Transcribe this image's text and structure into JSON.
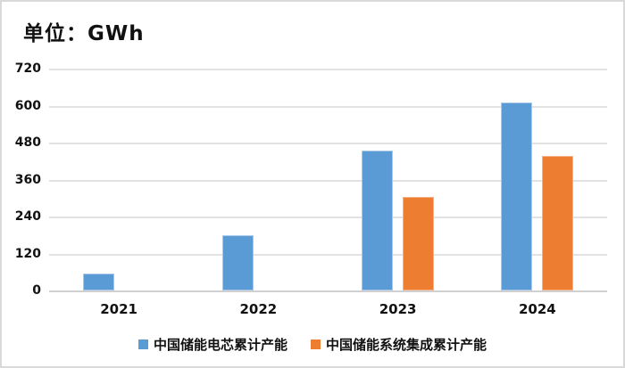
{
  "title": "单位：GWh",
  "chart_data": {
    "type": "bar",
    "categories": [
      "2021",
      "2022",
      "2023",
      "2024"
    ],
    "series": [
      {
        "name": "中国储能电芯累计产能",
        "color": "#5b9bd5",
        "values": [
          55,
          180,
          455,
          610
        ]
      },
      {
        "name": "中国储能系统集成累计产能",
        "color": "#ed7d31",
        "values": [
          0,
          0,
          305,
          438
        ]
      }
    ],
    "title": "单位：GWh",
    "xlabel": "",
    "ylabel": "",
    "ylim": [
      0,
      720
    ],
    "yticks": [
      0,
      120,
      240,
      360,
      480,
      600,
      720
    ],
    "grid": true,
    "legend_position": "bottom"
  },
  "colors": {
    "grid": "#e2e2e2",
    "frame_border": "#d9d9d9",
    "text": "#111111"
  }
}
